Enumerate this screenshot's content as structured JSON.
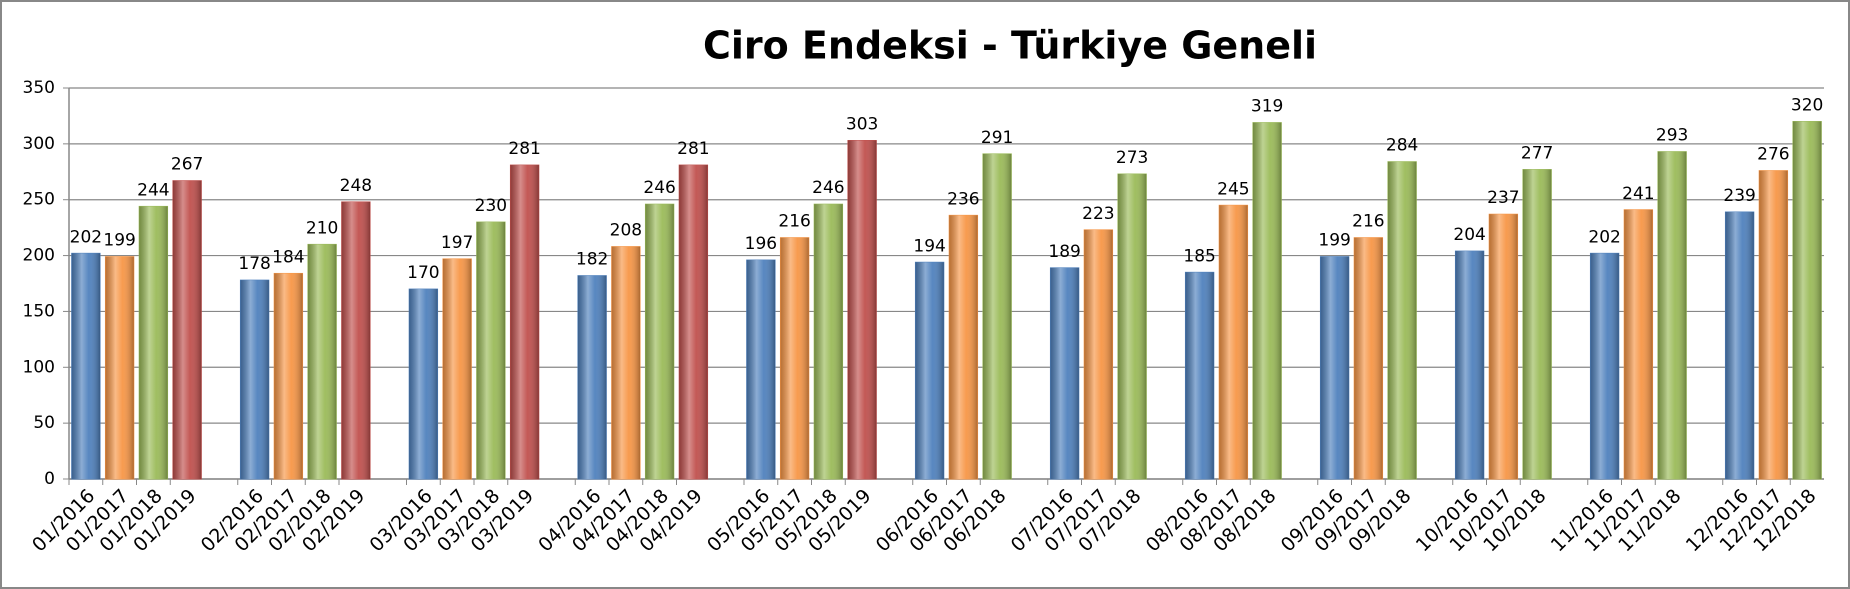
{
  "chart_data": {
    "type": "bar",
    "title": "Ciro Endeksi - Türkiye Geneli",
    "groups": [
      {
        "categories": [
          "01/2016",
          "01/2017",
          "01/2018",
          "01/2019"
        ],
        "values": [
          202,
          199,
          244,
          267
        ]
      },
      {
        "categories": [
          "02/2016",
          "02/2017",
          "02/2018",
          "02/2019"
        ],
        "values": [
          178,
          184,
          210,
          248
        ]
      },
      {
        "categories": [
          "03/2016",
          "03/2017",
          "03/2018",
          "03/2019"
        ],
        "values": [
          170,
          197,
          230,
          281
        ]
      },
      {
        "categories": [
          "04/2016",
          "04/2017",
          "04/2018",
          "04/2019"
        ],
        "values": [
          182,
          208,
          246,
          281
        ]
      },
      {
        "categories": [
          "05/2016",
          "05/2017",
          "05/2018",
          "05/2019"
        ],
        "values": [
          196,
          216,
          246,
          303
        ]
      },
      {
        "categories": [
          "06/2016",
          "06/2017",
          "06/2018"
        ],
        "values": [
          194,
          236,
          291
        ]
      },
      {
        "categories": [
          "07/2016",
          "07/2017",
          "07/2018"
        ],
        "values": [
          189,
          223,
          273
        ]
      },
      {
        "categories": [
          "08/2016",
          "08/2017",
          "08/2018"
        ],
        "values": [
          185,
          245,
          319
        ]
      },
      {
        "categories": [
          "09/2016",
          "09/2017",
          "09/2018"
        ],
        "values": [
          199,
          216,
          284
        ]
      },
      {
        "categories": [
          "10/2016",
          "10/2017",
          "10/2018"
        ],
        "values": [
          204,
          237,
          277
        ]
      },
      {
        "categories": [
          "11/2016",
          "11/2017",
          "11/2018"
        ],
        "values": [
          202,
          241,
          293
        ]
      },
      {
        "categories": [
          "12/2016",
          "12/2017",
          "12/2018"
        ],
        "values": [
          239,
          276,
          320
        ]
      }
    ],
    "colors": [
      "#4f81bd",
      "#f79646",
      "#9bbb59",
      "#c0504d"
    ],
    "ylim": [
      0,
      350
    ],
    "yticks": [
      0,
      50,
      100,
      150,
      200,
      250,
      300,
      350
    ],
    "grid": true
  }
}
